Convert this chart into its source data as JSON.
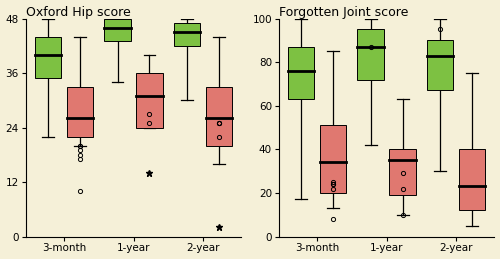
{
  "background_color": "#f5f0d8",
  "left_title": "Oxford Hip score",
  "right_title": "Forgotten Joint score",
  "green_color": "#7dc142",
  "red_color": "#e07870",
  "median_color": "#000000",
  "left_ylim": [
    0,
    48
  ],
  "left_yticks": [
    0,
    12,
    24,
    36,
    48
  ],
  "right_ylim": [
    0,
    100
  ],
  "right_yticks": [
    0,
    20,
    40,
    60,
    80,
    100
  ],
  "groups": [
    "3-month",
    "1-year",
    "2-year"
  ],
  "left_green": [
    {
      "q1": 35,
      "median": 40,
      "q3": 44,
      "whislo": 22,
      "whishi": 48,
      "fliers": []
    },
    {
      "q1": 43,
      "median": 46,
      "q3": 48,
      "whislo": 34,
      "whishi": 48,
      "fliers": []
    },
    {
      "q1": 42,
      "median": 45,
      "q3": 47,
      "whislo": 30,
      "whishi": 48,
      "fliers": []
    }
  ],
  "left_red": [
    {
      "q1": 22,
      "median": 26,
      "q3": 33,
      "whislo": 20,
      "whishi": 44,
      "fliers": [
        20,
        20,
        19,
        18,
        17,
        10
      ],
      "extreme": []
    },
    {
      "q1": 24,
      "median": 31,
      "q3": 36,
      "whislo": 24,
      "whishi": 40,
      "fliers": [
        27,
        25
      ],
      "extreme": [
        14
      ]
    },
    {
      "q1": 20,
      "median": 26,
      "q3": 33,
      "whislo": 16,
      "whishi": 44,
      "fliers": [
        25,
        25,
        25,
        22
      ],
      "extreme": [
        2
      ]
    }
  ],
  "right_green": [
    {
      "q1": 63,
      "median": 76,
      "q3": 87,
      "whislo": 17,
      "whishi": 100,
      "fliers": []
    },
    {
      "q1": 72,
      "median": 87,
      "q3": 95,
      "whislo": 42,
      "whishi": 100,
      "fliers": [
        87
      ]
    },
    {
      "q1": 67,
      "median": 83,
      "q3": 90,
      "whislo": 30,
      "whishi": 100,
      "fliers": [
        95
      ]
    }
  ],
  "right_red": [
    {
      "q1": 20,
      "median": 34,
      "q3": 51,
      "whislo": 13,
      "whishi": 85,
      "fliers": [
        8,
        22,
        24,
        24,
        25
      ],
      "extreme": []
    },
    {
      "q1": 19,
      "median": 35,
      "q3": 40,
      "whislo": 10,
      "whishi": 63,
      "fliers": [
        29,
        22,
        10
      ],
      "extreme": []
    },
    {
      "q1": 12,
      "median": 23,
      "q3": 40,
      "whislo": 5,
      "whishi": 75,
      "fliers": [],
      "extreme": []
    }
  ]
}
